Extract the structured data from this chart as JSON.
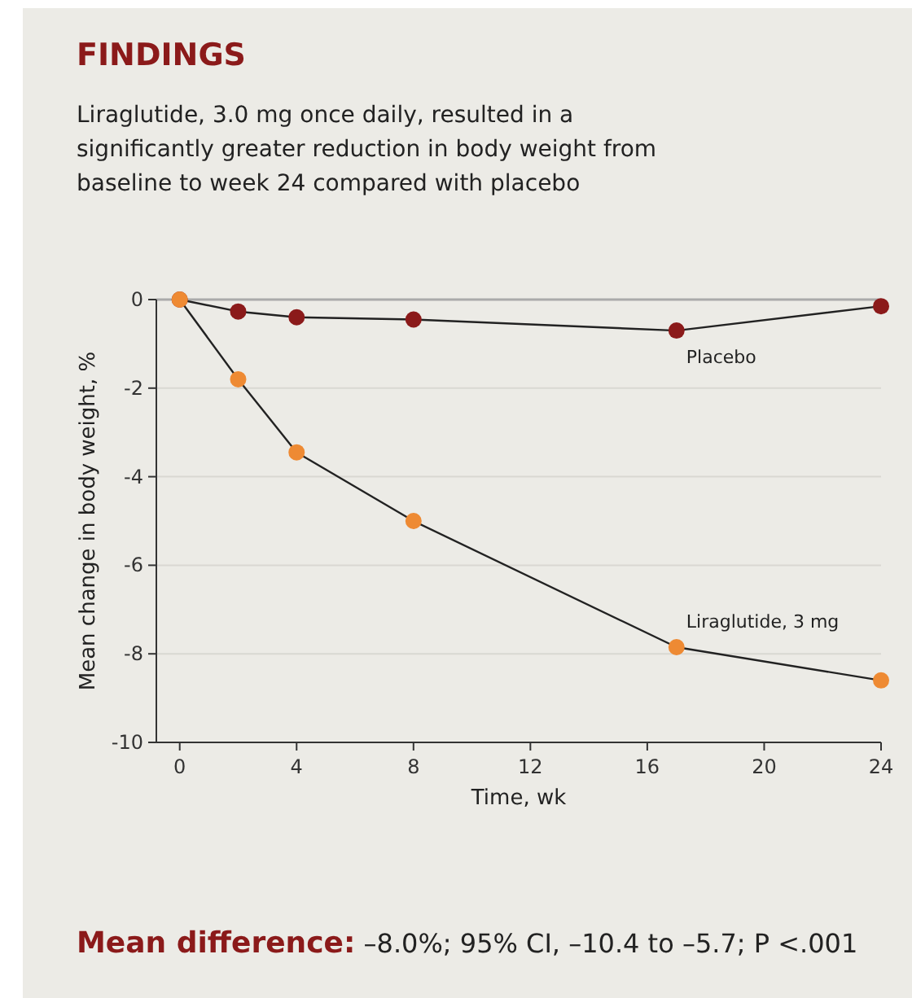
{
  "chart_data": {
    "type": "line",
    "title": "FINDINGS",
    "subtitle": "Liraglutide, 3.0 mg once daily, resulted in a significantly greater reduction in body weight from baseline to week 24 compared with placebo",
    "xlabel": "Time, wk",
    "ylabel": "Mean change in body weight, %",
    "x": [
      0,
      2,
      4,
      8,
      17,
      24
    ],
    "series": [
      {
        "name": "Placebo",
        "color": "#8b1a1a",
        "values": [
          0,
          -0.27,
          -0.4,
          -0.45,
          -0.7,
          -0.15
        ]
      },
      {
        "name": "Liraglutide, 3 mg",
        "color": "#ee8a33",
        "values": [
          0,
          -1.8,
          -3.45,
          -5.0,
          -7.85,
          -8.6
        ]
      }
    ],
    "xlim": [
      -0.8,
      24
    ],
    "xticks": [
      0,
      4,
      8,
      12,
      16,
      20,
      24
    ],
    "ylim": [
      -10,
      0
    ],
    "yticks": [
      0,
      -2,
      -4,
      -6,
      -8,
      -10
    ],
    "grid": "y",
    "marker": "circle",
    "line_style": "solid",
    "legend": false,
    "annotations": [
      "Mean difference: –8.0%; 95% CI, –10.4 to –5.7; P <.001"
    ]
  }
}
